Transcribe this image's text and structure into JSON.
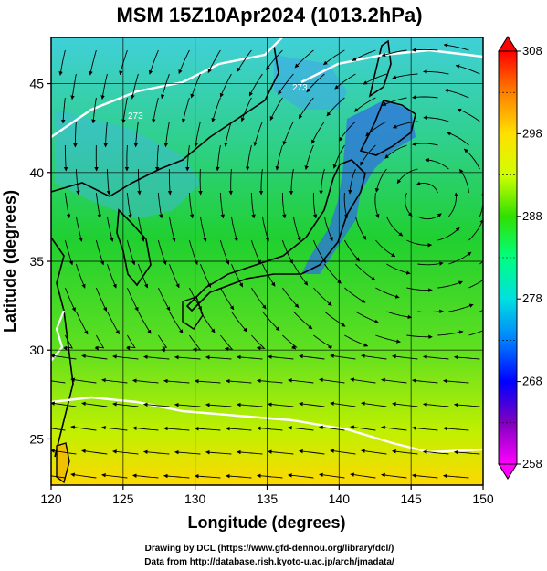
{
  "title": "MSM 15Z10Apr2024 (1013.2hPa)",
  "x_axis": {
    "label": "Longitude (degrees)",
    "range": [
      120,
      150
    ],
    "ticks": [
      "120",
      "125",
      "130",
      "135",
      "140",
      "145",
      "150"
    ]
  },
  "y_axis": {
    "label": "Latitude  (degrees)",
    "range": [
      22.4,
      47.6
    ],
    "ticks": [
      "25",
      "30",
      "35",
      "40",
      "45"
    ]
  },
  "colorbar": {
    "range": [
      258,
      308
    ],
    "ticks": [
      "258",
      "268",
      "278",
      "288",
      "298",
      "308"
    ],
    "colors": [
      "#ff00ff",
      "#8000c0",
      "#0000ff",
      "#0080ff",
      "#00e0e0",
      "#00ff80",
      "#30e000",
      "#d0ff00",
      "#ffe000",
      "#ff8000",
      "#ff0000"
    ]
  },
  "contour_labels": [
    "273",
    "273",
    "273",
    "273"
  ],
  "credits": {
    "line1": "Drawing by DCL (https://www.gfd-dennou.org/library/dcl/)",
    "line2": "Data from http://database.rish.kyoto-u.ac.jp/arch/jmadata/"
  }
}
